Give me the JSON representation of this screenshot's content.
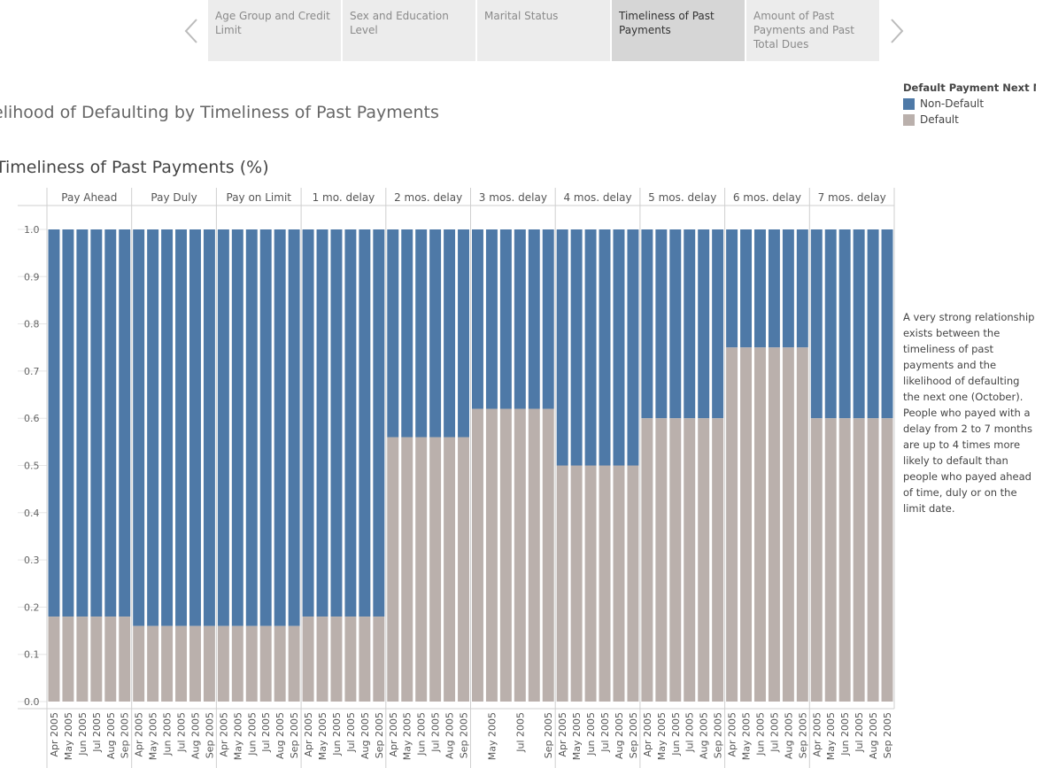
{
  "nav": {
    "tabs": [
      {
        "label": "Age Group and Credit Limit",
        "active": false
      },
      {
        "label": "Sex and Education Level",
        "active": false
      },
      {
        "label": "Marital Status",
        "active": false
      },
      {
        "label": "Timeliness of Past Payments",
        "active": true
      },
      {
        "label": "Amount of Past Payments and Past Total Dues",
        "active": false
      }
    ],
    "prev_icon": "chevron-left-icon",
    "next_icon": "chevron-right-icon"
  },
  "title": "elihood of Defaulting by Timeliness of Past Payments",
  "subtitle": "Timeliness of Past Payments (%)",
  "legend": {
    "title": "Default Payment Next M...",
    "items": [
      {
        "label": "Non-Default",
        "color": "#4e79a7"
      },
      {
        "label": "Default",
        "color": "#bab0ac"
      }
    ]
  },
  "note": "A very strong relationship exists between the timeliness of past payments and the likelihood of defaulting the next one (October). People who payed with a delay from 2 to 7 months are up to 4 times more likely to default than people who payed ahead of time, duly or on the limit date.",
  "chart_data": {
    "type": "bar",
    "stacked": true,
    "ylim": [
      0,
      1.0
    ],
    "yticks": [
      "0.0",
      "0.1",
      "0.2",
      "0.3",
      "0.4",
      "0.5",
      "0.6",
      "0.7",
      "0.8",
      "0.9",
      "1.0"
    ],
    "colors": {
      "Non-Default": "#4e79a7",
      "Default": "#bab0ac"
    },
    "panels": [
      {
        "name": "Pay Ahead",
        "months": [
          "Apr 2005",
          "May 2005",
          "Jun 2005",
          "Jul 2005",
          "Aug 2005",
          "Sep 2005"
        ],
        "default": [
          0.18,
          0.18,
          0.18,
          0.18,
          0.18,
          0.18
        ]
      },
      {
        "name": "Pay Duly",
        "months": [
          "Apr 2005",
          "May 2005",
          "Jun 2005",
          "Jul 2005",
          "Aug 2005",
          "Sep 2005"
        ],
        "default": [
          0.16,
          0.16,
          0.16,
          0.16,
          0.16,
          0.16
        ]
      },
      {
        "name": "Pay on Limit",
        "months": [
          "Apr 2005",
          "May 2005",
          "Jun 2005",
          "Jul 2005",
          "Aug 2005",
          "Sep 2005"
        ],
        "default": [
          0.16,
          0.16,
          0.16,
          0.16,
          0.16,
          0.16
        ]
      },
      {
        "name": "1 mo. delay",
        "months": [
          "Apr 2005",
          "May 2005",
          "Jun 2005",
          "Jul 2005",
          "Aug 2005",
          "Sep 2005"
        ],
        "default": [
          0.18,
          0.18,
          0.18,
          0.18,
          0.18,
          0.18
        ]
      },
      {
        "name": "2 mos. delay",
        "months": [
          "Apr 2005",
          "May 2005",
          "Jun 2005",
          "Jul 2005",
          "Aug 2005",
          "Sep 2005"
        ],
        "default": [
          0.56,
          0.56,
          0.56,
          0.56,
          0.56,
          0.56
        ]
      },
      {
        "name": "3 mos. delay",
        "months": [
          "May 2005",
          "Jul 2005",
          "Sep 2005"
        ],
        "bars": 6,
        "default": [
          0.62,
          0.62,
          0.62,
          0.62,
          0.62,
          0.62
        ]
      },
      {
        "name": "4 mos. delay",
        "months": [
          "Apr 2005",
          "May 2005",
          "Jun 2005",
          "Jul 2005",
          "Aug 2005",
          "Sep 2005"
        ],
        "default": [
          0.5,
          0.5,
          0.5,
          0.5,
          0.5,
          0.5
        ]
      },
      {
        "name": "5 mos. delay",
        "months": [
          "Apr 2005",
          "May 2005",
          "Jun 2005",
          "Jul 2005",
          "Aug 2005",
          "Sep 2005"
        ],
        "default": [
          0.6,
          0.6,
          0.6,
          0.6,
          0.6,
          0.6
        ]
      },
      {
        "name": "6 mos. delay",
        "months": [
          "Apr 2005",
          "May 2005",
          "Jun 2005",
          "Jul 2005",
          "Aug 2005",
          "Sep 2005"
        ],
        "default": [
          0.75,
          0.75,
          0.75,
          0.75,
          0.75,
          0.75
        ]
      },
      {
        "name": "7 mos. delay",
        "months": [
          "Apr 2005",
          "May 2005",
          "Jun 2005",
          "Jul 2005",
          "Aug 2005",
          "Sep 2005"
        ],
        "default": [
          0.6,
          0.6,
          0.6,
          0.6,
          0.6,
          0.6
        ]
      }
    ]
  }
}
